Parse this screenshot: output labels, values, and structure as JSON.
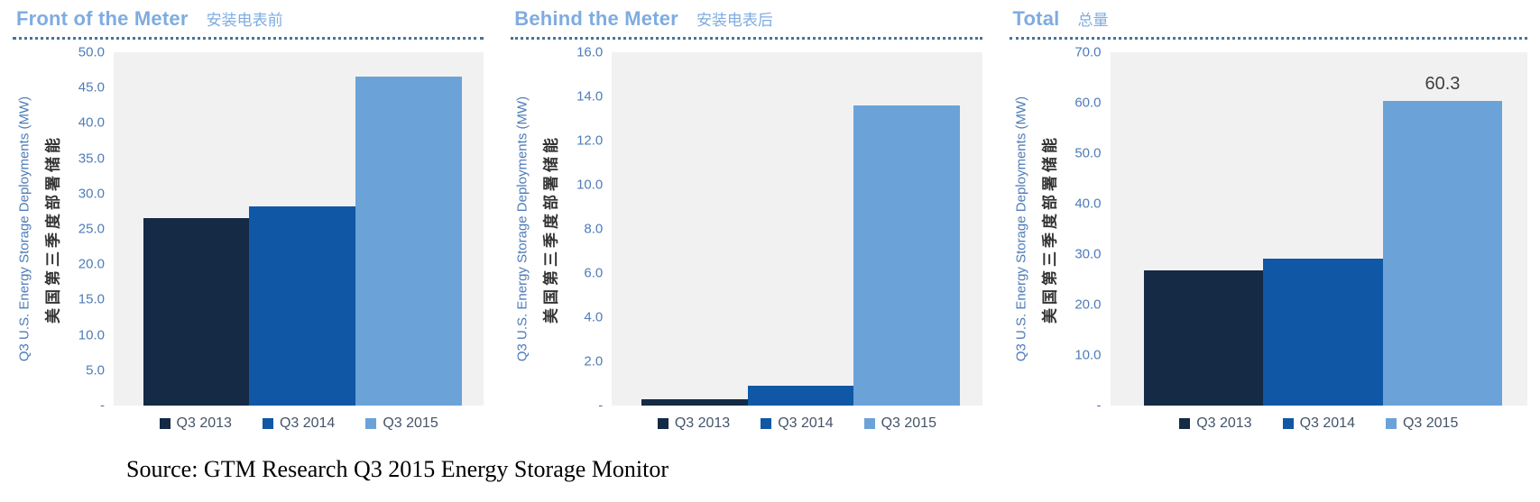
{
  "style": {
    "title_color": "#7FACE0",
    "tick_label_color": "#4E7CB8",
    "legend_text_color": "#44546A",
    "plot_background": "#F1F1F2",
    "divider_color": "#4A7296",
    "bar_value_label_color": "#404040",
    "series_palette": [
      "#142A45",
      "#1057A5",
      "#6BA3D8"
    ]
  },
  "footer": {
    "source_text": "Source: GTM Research Q3 2015 Energy Storage Monitor"
  },
  "chart_data": [
    {
      "type": "bar",
      "title": "Front of the Meter",
      "title_zh": "安装电表前",
      "ylabel": "Q3 U.S. Energy Storage Deployments (MW)",
      "ylabel_zh": "美国第三季度部署储能",
      "categories": [
        "Q3 2013",
        "Q3 2014",
        "Q3 2015"
      ],
      "values": [
        26.5,
        28.2,
        46.6
      ],
      "ylim": [
        0,
        50
      ],
      "tick_interval": 5,
      "ticks": [
        "50.0",
        "45.0",
        "40.0",
        "35.0",
        "30.0",
        "25.0",
        "20.0",
        "15.0",
        "10.0",
        "5.0",
        "-"
      ],
      "series_colors": [
        "#142A45",
        "#1057A5",
        "#6BA3D8"
      ],
      "bar_value_labels": [
        "",
        "",
        ""
      ],
      "grid": false,
      "legend_position": "bottom"
    },
    {
      "type": "bar",
      "title": "Behind the Meter",
      "title_zh": "安装电表后",
      "ylabel": "Q3 U.S. Energy Storage Deployments (MW)",
      "ylabel_zh": "美国第三季度部署储能",
      "categories": [
        "Q3 2013",
        "Q3 2014",
        "Q3 2015"
      ],
      "values": [
        0.3,
        0.9,
        13.6
      ],
      "ylim": [
        0,
        16
      ],
      "tick_interval": 2,
      "ticks": [
        "16.0",
        "14.0",
        "12.0",
        "10.0",
        "8.0",
        "6.0",
        "4.0",
        "2.0",
        "-"
      ],
      "series_colors": [
        "#142A45",
        "#1057A5",
        "#6BA3D8"
      ],
      "bar_value_labels": [
        "",
        "",
        ""
      ],
      "grid": false,
      "legend_position": "bottom"
    },
    {
      "type": "bar",
      "title": "Total",
      "title_zh": "总量",
      "ylabel": "Q3 U.S. Energy Storage Deployments (MW)",
      "ylabel_zh": "美国第三季度部署储能",
      "categories": [
        "Q3 2013",
        "Q3 2014",
        "Q3 2015"
      ],
      "values": [
        26.8,
        29.1,
        60.3
      ],
      "ylim": [
        0,
        70
      ],
      "tick_interval": 10,
      "ticks": [
        "70.0",
        "60.0",
        "50.0",
        "40.0",
        "30.0",
        "20.0",
        "10.0",
        "-"
      ],
      "series_colors": [
        "#142A45",
        "#1057A5",
        "#6BA3D8"
      ],
      "bar_value_labels": [
        "",
        "",
        "60.3"
      ],
      "grid": false,
      "legend_position": "bottom"
    }
  ]
}
